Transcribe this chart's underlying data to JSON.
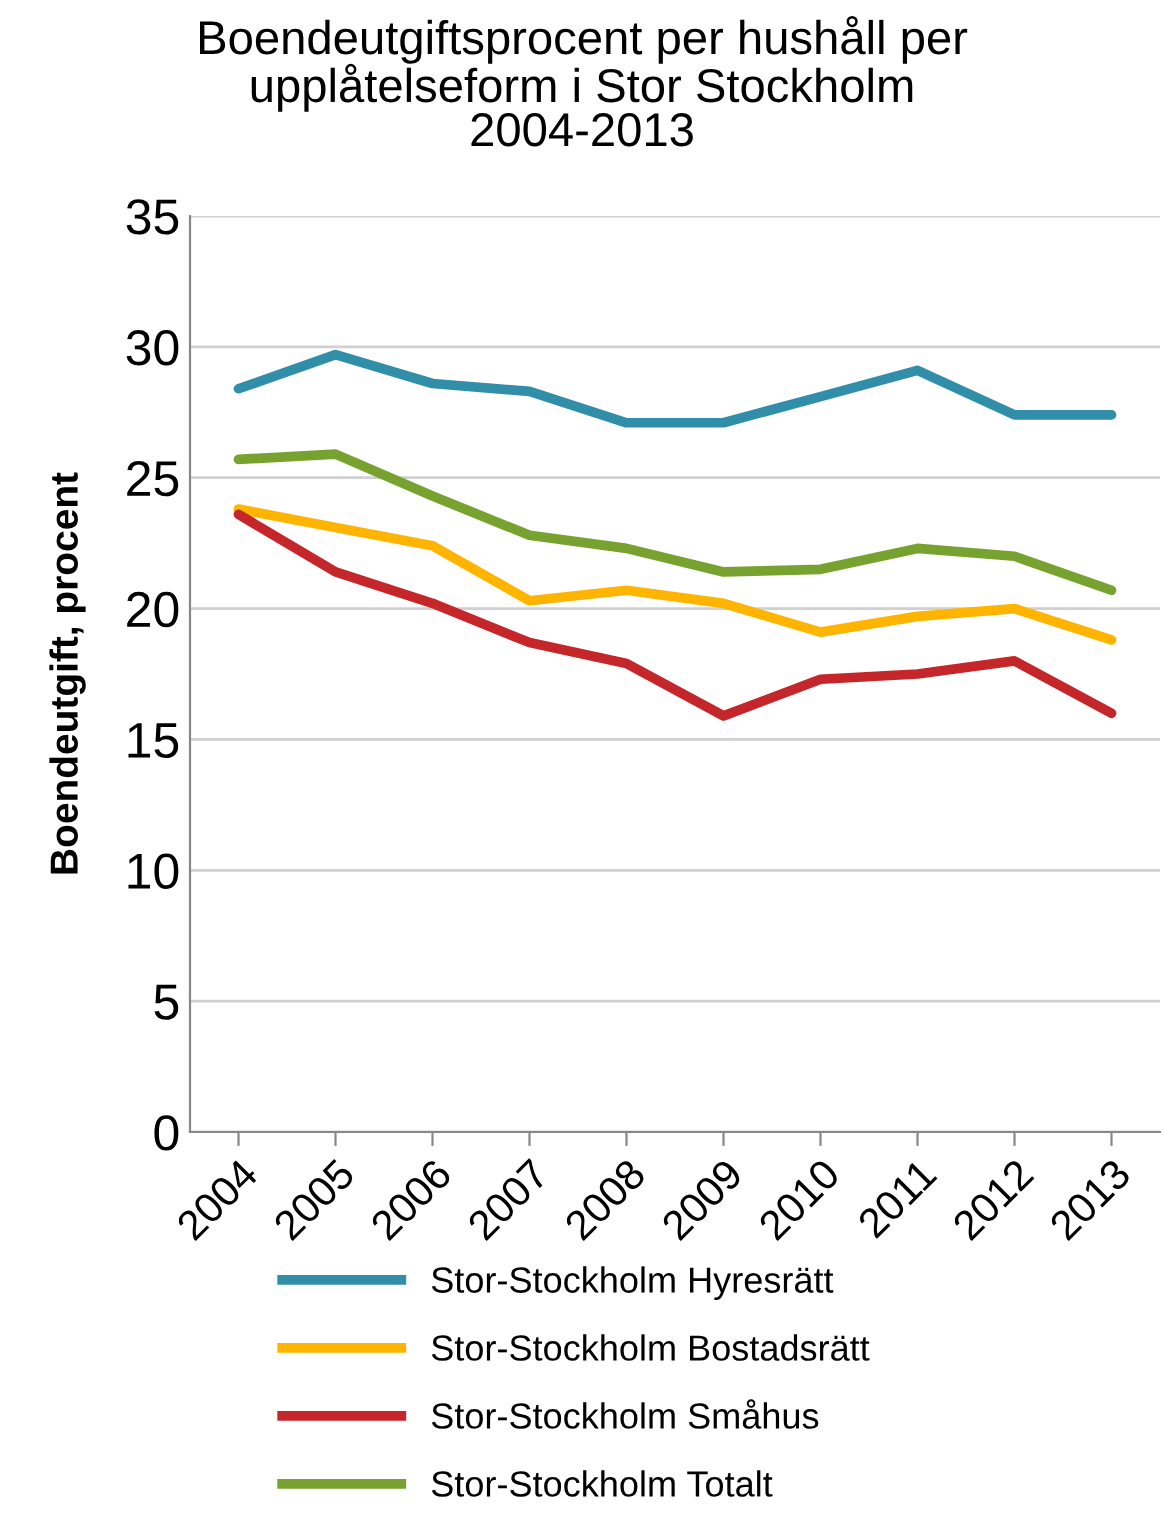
{
  "chart_data": {
    "type": "line",
    "title": "Boendeutgiftsprocent per hushåll per\nupplåtelseform i Stor Stockholm\n2004-2013",
    "ylabel": "Boendeutgift, procent",
    "categories": [
      "2004",
      "2005",
      "2006",
      "2007",
      "2008",
      "2009",
      "2010",
      "2011",
      "2012",
      "2013"
    ],
    "series": [
      {
        "name": "Stor-Stockholm Hyresrätt",
        "color": "#318ea8",
        "values": [
          28.4,
          29.7,
          28.6,
          28.3,
          27.1,
          27.1,
          28.1,
          29.1,
          27.4,
          27.4
        ]
      },
      {
        "name": "Stor-Stockholm Bostadsrätt",
        "color": "#ffb400",
        "values": [
          23.8,
          23.1,
          22.4,
          20.3,
          20.7,
          20.2,
          19.1,
          19.7,
          20.0,
          18.8
        ]
      },
      {
        "name": "Stor-Stockholm Småhus",
        "color": "#c4262a",
        "values": [
          23.6,
          21.4,
          20.2,
          18.7,
          17.9,
          15.9,
          17.3,
          17.5,
          18.0,
          16.0
        ]
      },
      {
        "name": "Stor-Stockholm Totalt",
        "color": "#78a22f",
        "values": [
          25.7,
          25.9,
          24.3,
          22.8,
          22.3,
          21.4,
          21.5,
          22.3,
          22.0,
          20.7
        ]
      }
    ],
    "ylim": [
      0,
      35
    ],
    "yticks": [
      0,
      5,
      10,
      15,
      20,
      25,
      30,
      35
    ],
    "grid": "y",
    "legend": "bottom",
    "marker": "none",
    "line_style": "solid"
  }
}
